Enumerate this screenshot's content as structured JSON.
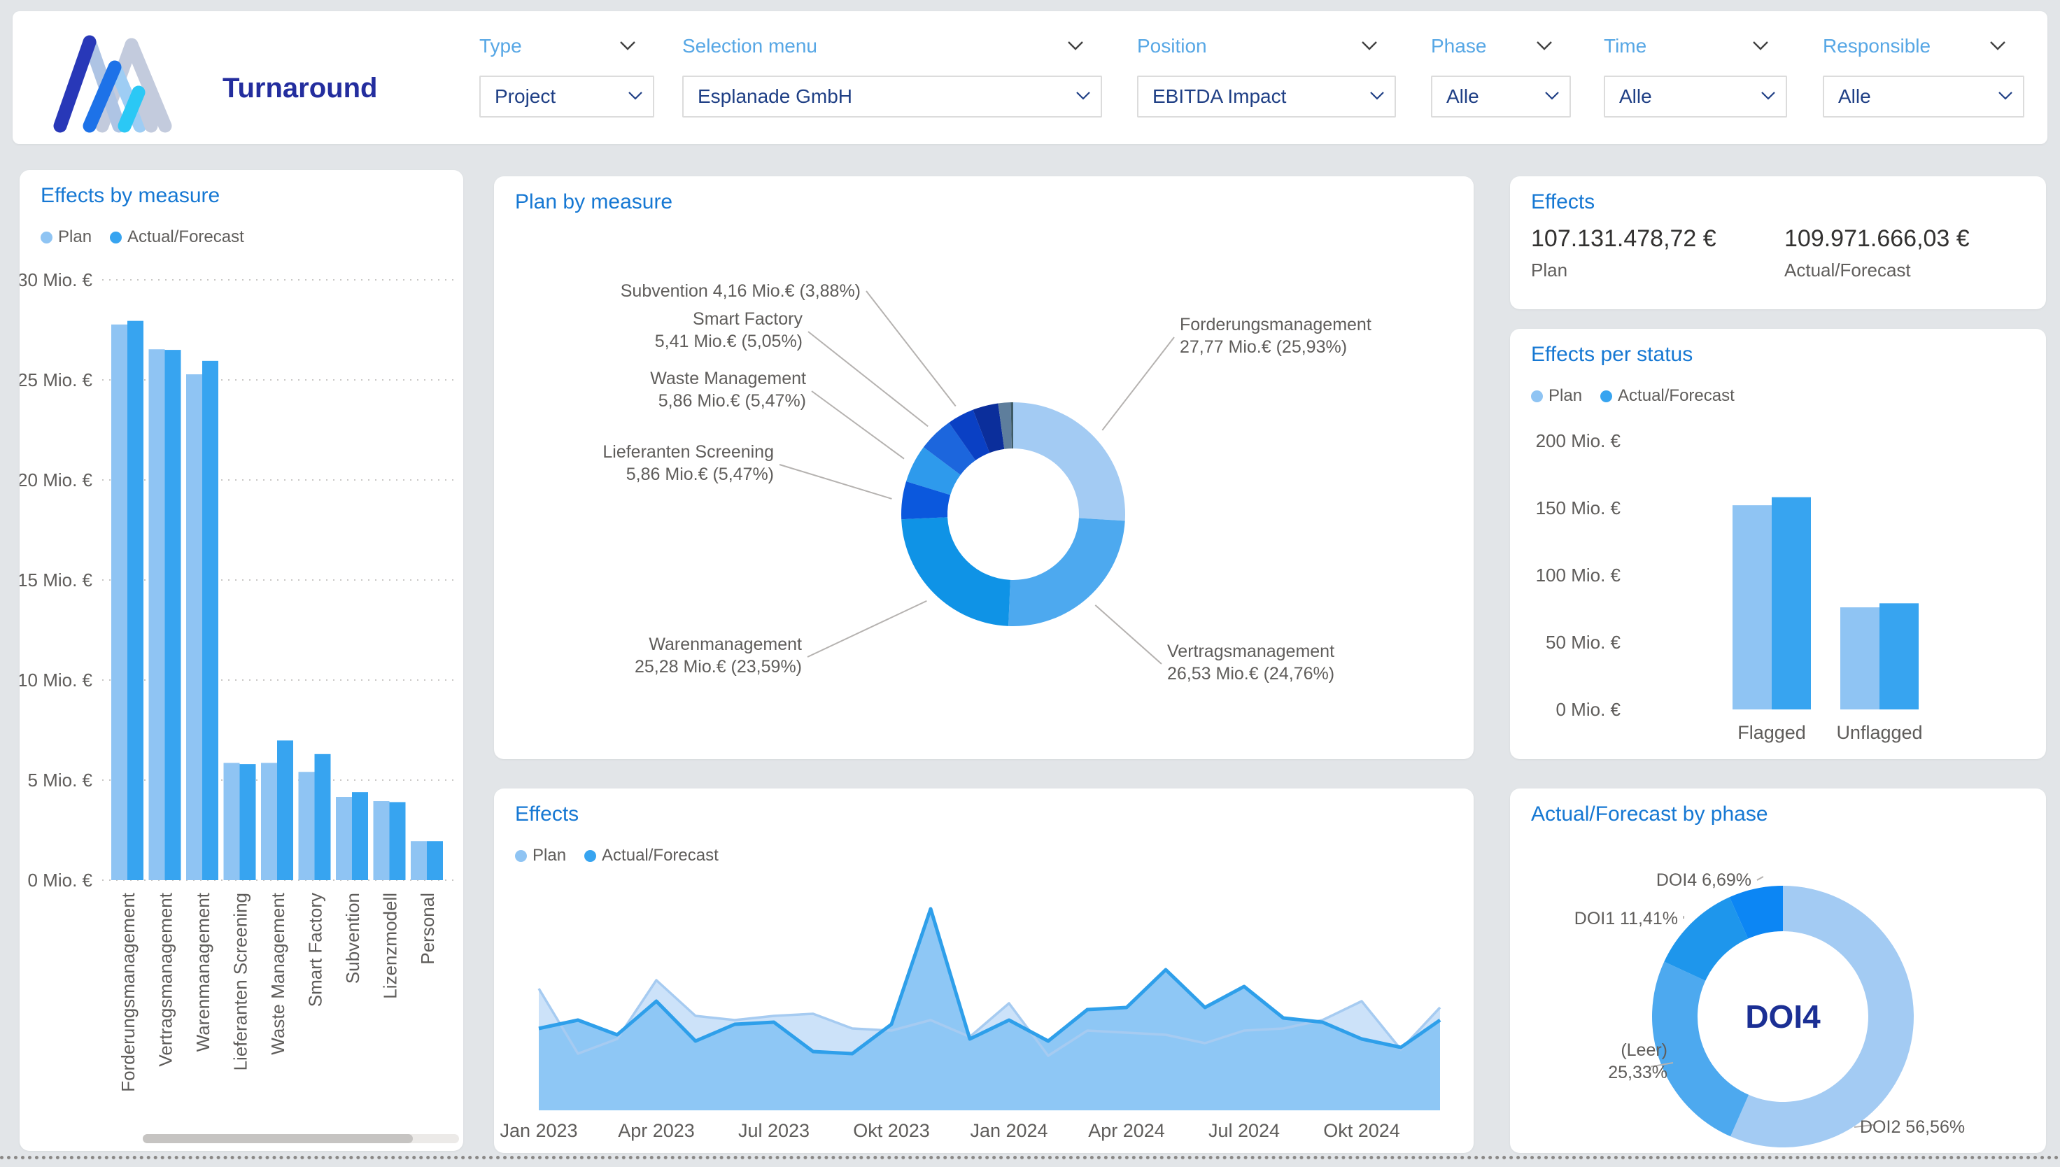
{
  "header": {
    "title": "Turnaround",
    "filters": [
      {
        "label": "Type",
        "value": "Project"
      },
      {
        "label": "Selection menu",
        "value": "Esplanade GmbH"
      },
      {
        "label": "Position",
        "value": "EBITDA Impact"
      },
      {
        "label": "Phase",
        "value": "Alle"
      },
      {
        "label": "Time",
        "value": "Alle"
      },
      {
        "label": "Responsible",
        "value": "Alle"
      }
    ]
  },
  "legend": {
    "plan": "Plan",
    "actual": "Actual/Forecast"
  },
  "cards": {
    "effects_by_measure": {
      "title": "Effects by measure"
    },
    "plan_by_measure": {
      "title": "Plan by measure"
    },
    "effects_kpi": {
      "title": "Effects",
      "items": [
        {
          "value": "107.131.478,72 €",
          "label": "Plan"
        },
        {
          "value": "109.971.666,03 €",
          "label": "Actual/Forecast"
        }
      ]
    },
    "effects_per_status": {
      "title": "Effects per status"
    },
    "effects_over_time": {
      "title": "Effects"
    },
    "actual_forecast_by_phase": {
      "title": "Actual/Forecast by phase",
      "center_label": "DOI4"
    }
  },
  "chart_data": [
    {
      "id": "effects_by_measure",
      "type": "bar",
      "title": "Effects by measure",
      "categories": [
        "Forderungsmanagement",
        "Vertragsmanagement",
        "Warenmanagement",
        "Lieferanten Screening",
        "Waste Management",
        "Smart Factory",
        "Subvention",
        "Lizenzmodell",
        "Personal"
      ],
      "series": [
        {
          "name": "Plan",
          "color": "#8fc4f3",
          "values": [
            27.77,
            26.53,
            25.28,
            5.86,
            5.86,
            5.41,
            4.16,
            3.95,
            1.95
          ]
        },
        {
          "name": "Actual/Forecast",
          "color": "#37a4f0",
          "values": [
            27.95,
            26.5,
            25.95,
            5.8,
            6.98,
            6.3,
            4.4,
            3.9,
            1.95
          ]
        }
      ],
      "ylabel": "Mio. €",
      "ylim": [
        0,
        30
      ],
      "grid": "dotted-horizontal",
      "y_ticks": [
        "30 Mio. €",
        "25 Mio. €",
        "20 Mio. €",
        "15 Mio. €",
        "10 Mio. €",
        "5 Mio. €",
        "0 Mio. €"
      ]
    },
    {
      "id": "plan_by_measure",
      "type": "donut",
      "title": "Plan by measure",
      "unit": "Mio.€",
      "slices": [
        {
          "name": "Forderungsmanagement",
          "value_label": "27,77 Mio.€ (25,93%)",
          "value": 27.77,
          "pct": 25.93,
          "color": "#a3cbf3",
          "label_visible": true
        },
        {
          "name": "Vertragsmanagement",
          "value_label": "26,53 Mio.€ (24,76%)",
          "value": 26.53,
          "pct": 24.76,
          "color": "#4da9ef",
          "label_visible": true
        },
        {
          "name": "Warenmanagement",
          "value_label": "25,28 Mio.€ (23,59%)",
          "value": 25.28,
          "pct": 23.59,
          "color": "#0f93e6",
          "label_visible": true
        },
        {
          "name": "Lieferanten Screening",
          "value_label": "5,86 Mio.€ (5,47%)",
          "value": 5.86,
          "pct": 5.47,
          "color": "#0b58dd",
          "label_visible": true
        },
        {
          "name": "Waste Management",
          "value_label": "5,86 Mio.€ (5,47%)",
          "value": 5.86,
          "pct": 5.47,
          "color": "#2e9aec",
          "label_visible": true
        },
        {
          "name": "Smart Factory",
          "value_label": "5,41 Mio.€ (5,05%)",
          "value": 5.41,
          "pct": 5.05,
          "color": "#1c66dd",
          "label_visible": true
        },
        {
          "name": "Subvention",
          "value_label": "4,16 Mio.€ (3,88%)",
          "value": 4.16,
          "pct": 3.88,
          "color": "#0a40c4",
          "label_visible": true
        },
        {
          "name": "",
          "value_label": "",
          "value": null,
          "pct": 3.69,
          "color": "#0b2e9b",
          "label_visible": false
        },
        {
          "name": "",
          "value_label": "",
          "value": null,
          "pct": 1.81,
          "color": "#5e7e9c",
          "label_visible": false
        },
        {
          "name": "",
          "value_label": "",
          "value": null,
          "pct": 0.35,
          "color": "#3e5b66",
          "label_visible": false
        }
      ]
    },
    {
      "id": "effects_over_time",
      "type": "area",
      "title": "Effects",
      "x": [
        "Jan 2023",
        "Feb 2023",
        "Mär 2023",
        "Apr 2023",
        "Mai 2023",
        "Jun 2023",
        "Jul 2023",
        "Aug 2023",
        "Sep 2023",
        "Okt 2023",
        "Nov 2023",
        "Dez 2023",
        "Jan 2024",
        "Feb 2024",
        "Mär 2024",
        "Apr 2024",
        "Mai 2024",
        "Jun 2024",
        "Jul 2024",
        "Aug 2024",
        "Sep 2024",
        "Okt 2024",
        "Nov 2024",
        "Dez 2024"
      ],
      "x_ticks": [
        "Jan 2023",
        "Apr 2023",
        "Jul 2023",
        "Okt 2023",
        "Jan 2024",
        "Apr 2024",
        "Jul 2024",
        "Okt 2024"
      ],
      "series": [
        {
          "name": "Plan",
          "color": "#a6cbf1",
          "fill": "#c7dff8",
          "values": [
            5.8,
            2.7,
            3.4,
            6.2,
            4.5,
            4.3,
            4.5,
            4.6,
            3.9,
            3.8,
            4.3,
            3.5,
            5.1,
            2.6,
            3.8,
            3.7,
            3.6,
            3.2,
            3.8,
            3.9,
            4.3,
            5.2,
            2.9,
            4.9
          ]
        },
        {
          "name": "Actual/Forecast",
          "color": "#2e9fea",
          "fill": "#8ec7f5",
          "values": [
            3.9,
            4.3,
            3.6,
            5.2,
            3.3,
            4.1,
            4.2,
            2.8,
            2.7,
            4.1,
            9.6,
            3.4,
            4.3,
            3.3,
            4.8,
            4.9,
            6.7,
            4.9,
            5.9,
            4.4,
            4.2,
            3.4,
            3.0,
            4.3
          ]
        }
      ],
      "y_axis_visible": false,
      "ylim": [
        0,
        10
      ]
    },
    {
      "id": "effects_per_status",
      "type": "bar",
      "title": "Effects per status",
      "categories": [
        "Flagged",
        "Unflagged"
      ],
      "series": [
        {
          "name": "Plan",
          "color": "#8fc4f3",
          "values": [
            152,
            76
          ]
        },
        {
          "name": "Actual/Forecast",
          "color": "#37a4f0",
          "values": [
            158,
            79
          ]
        }
      ],
      "ylabel": "Mio. €",
      "ylim": [
        0,
        200
      ],
      "grid": "none",
      "y_ticks": [
        "200 Mio. €",
        "150 Mio. €",
        "100 Mio. €",
        "50 Mio. €",
        "0 Mio. €"
      ]
    },
    {
      "id": "actual_forecast_by_phase",
      "type": "donut",
      "title": "Actual/Forecast by phase",
      "center_label": "DOI4",
      "slices": [
        {
          "name": "DOI2",
          "pct_label": "56,56%",
          "pct": 56.56,
          "color": "#a3cbf3",
          "label_visible": true
        },
        {
          "name": "(Leer)",
          "pct_label": "25,33%",
          "pct": 25.33,
          "color": "#4da9ef",
          "label_visible": true
        },
        {
          "name": "DOI1",
          "pct_label": "11,41%",
          "pct": 11.41,
          "color": "#1e96ec",
          "label_visible": true
        },
        {
          "name": "DOI4",
          "pct_label": "6,69%",
          "pct": 6.69,
          "color": "#0c86f4",
          "label_visible": true
        }
      ]
    }
  ]
}
